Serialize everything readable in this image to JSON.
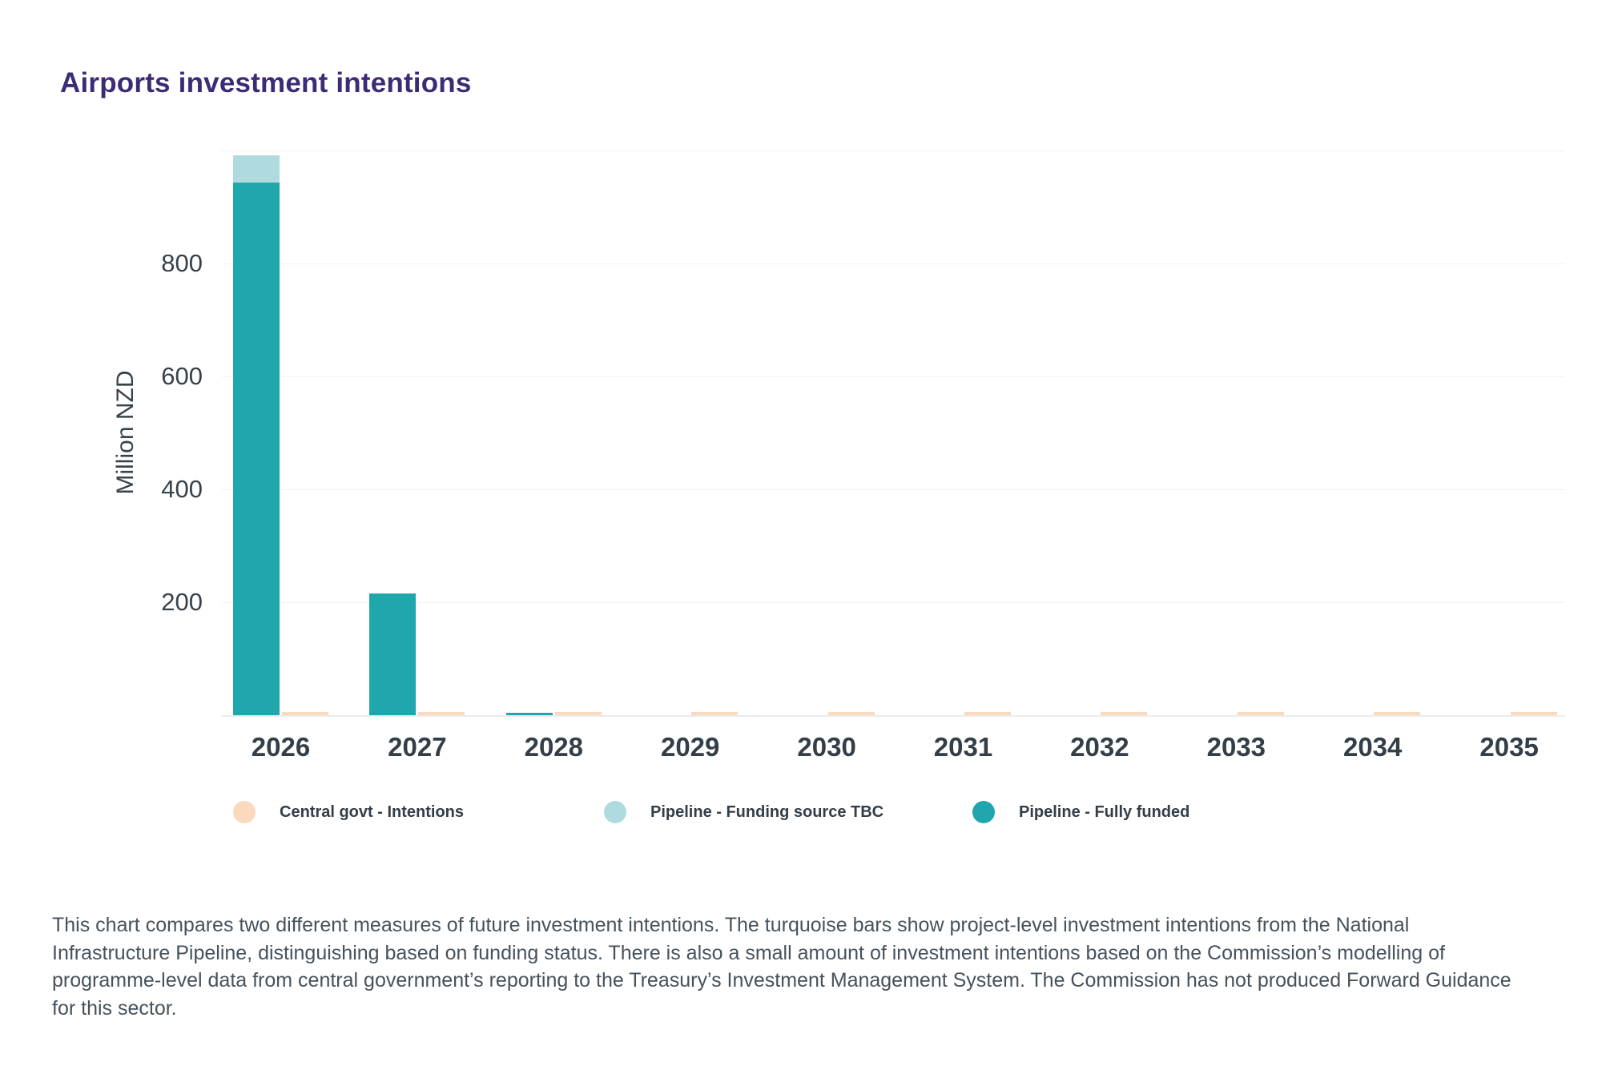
{
  "title": {
    "text": "Airports investment intentions",
    "color": "#3d2b77"
  },
  "chart_data": {
    "type": "bar",
    "title": "Airports investment intentions",
    "xlabel": "",
    "ylabel": "Million NZD",
    "ylim": [
      0,
      1000
    ],
    "yticks": [
      200,
      400,
      600,
      800
    ],
    "grid": true,
    "legend_position": "bottom",
    "bar_arrangement": "pipeline series stacked (fully funded below, funding TBC above) side-by-side with central govt bar per year",
    "categories": [
      "2026",
      "2027",
      "2028",
      "2029",
      "2030",
      "2031",
      "2032",
      "2033",
      "2034",
      "2035"
    ],
    "series": [
      {
        "name": "Central govt - Intentions",
        "color": "#fbd9bc",
        "values": [
          6,
          5,
          5,
          5,
          5,
          5,
          5,
          5,
          5,
          5
        ]
      },
      {
        "name": "Pipeline - Funding source TBC",
        "color": "#b0dbde",
        "values": [
          48,
          0,
          0,
          0,
          0,
          0,
          0,
          0,
          0,
          0
        ]
      },
      {
        "name": "Pipeline - Fully funded",
        "color": "#20a6ad",
        "values": [
          943,
          216,
          4,
          0,
          0,
          0,
          0,
          0,
          0,
          0
        ]
      }
    ]
  },
  "legend": {
    "items": [
      {
        "label": "Central govt - Intentions",
        "color": "#fbd9bc"
      },
      {
        "label": "Pipeline - Funding source TBC",
        "color": "#b0dbde"
      },
      {
        "label": "Pipeline - Fully funded",
        "color": "#20a6ad"
      }
    ]
  },
  "description": {
    "text": "This chart compares two different measures of future investment intentions. The turquoise bars show project-level investment intentions from the National Infrastructure Pipeline, distinguishing based on funding status. There is also a small amount of investment intentions based on the Commission’s modelling of programme-level data from central government’s reporting to the Treasury’s Investment Management System. The Commission has not produced Forward Guidance for this sector."
  }
}
